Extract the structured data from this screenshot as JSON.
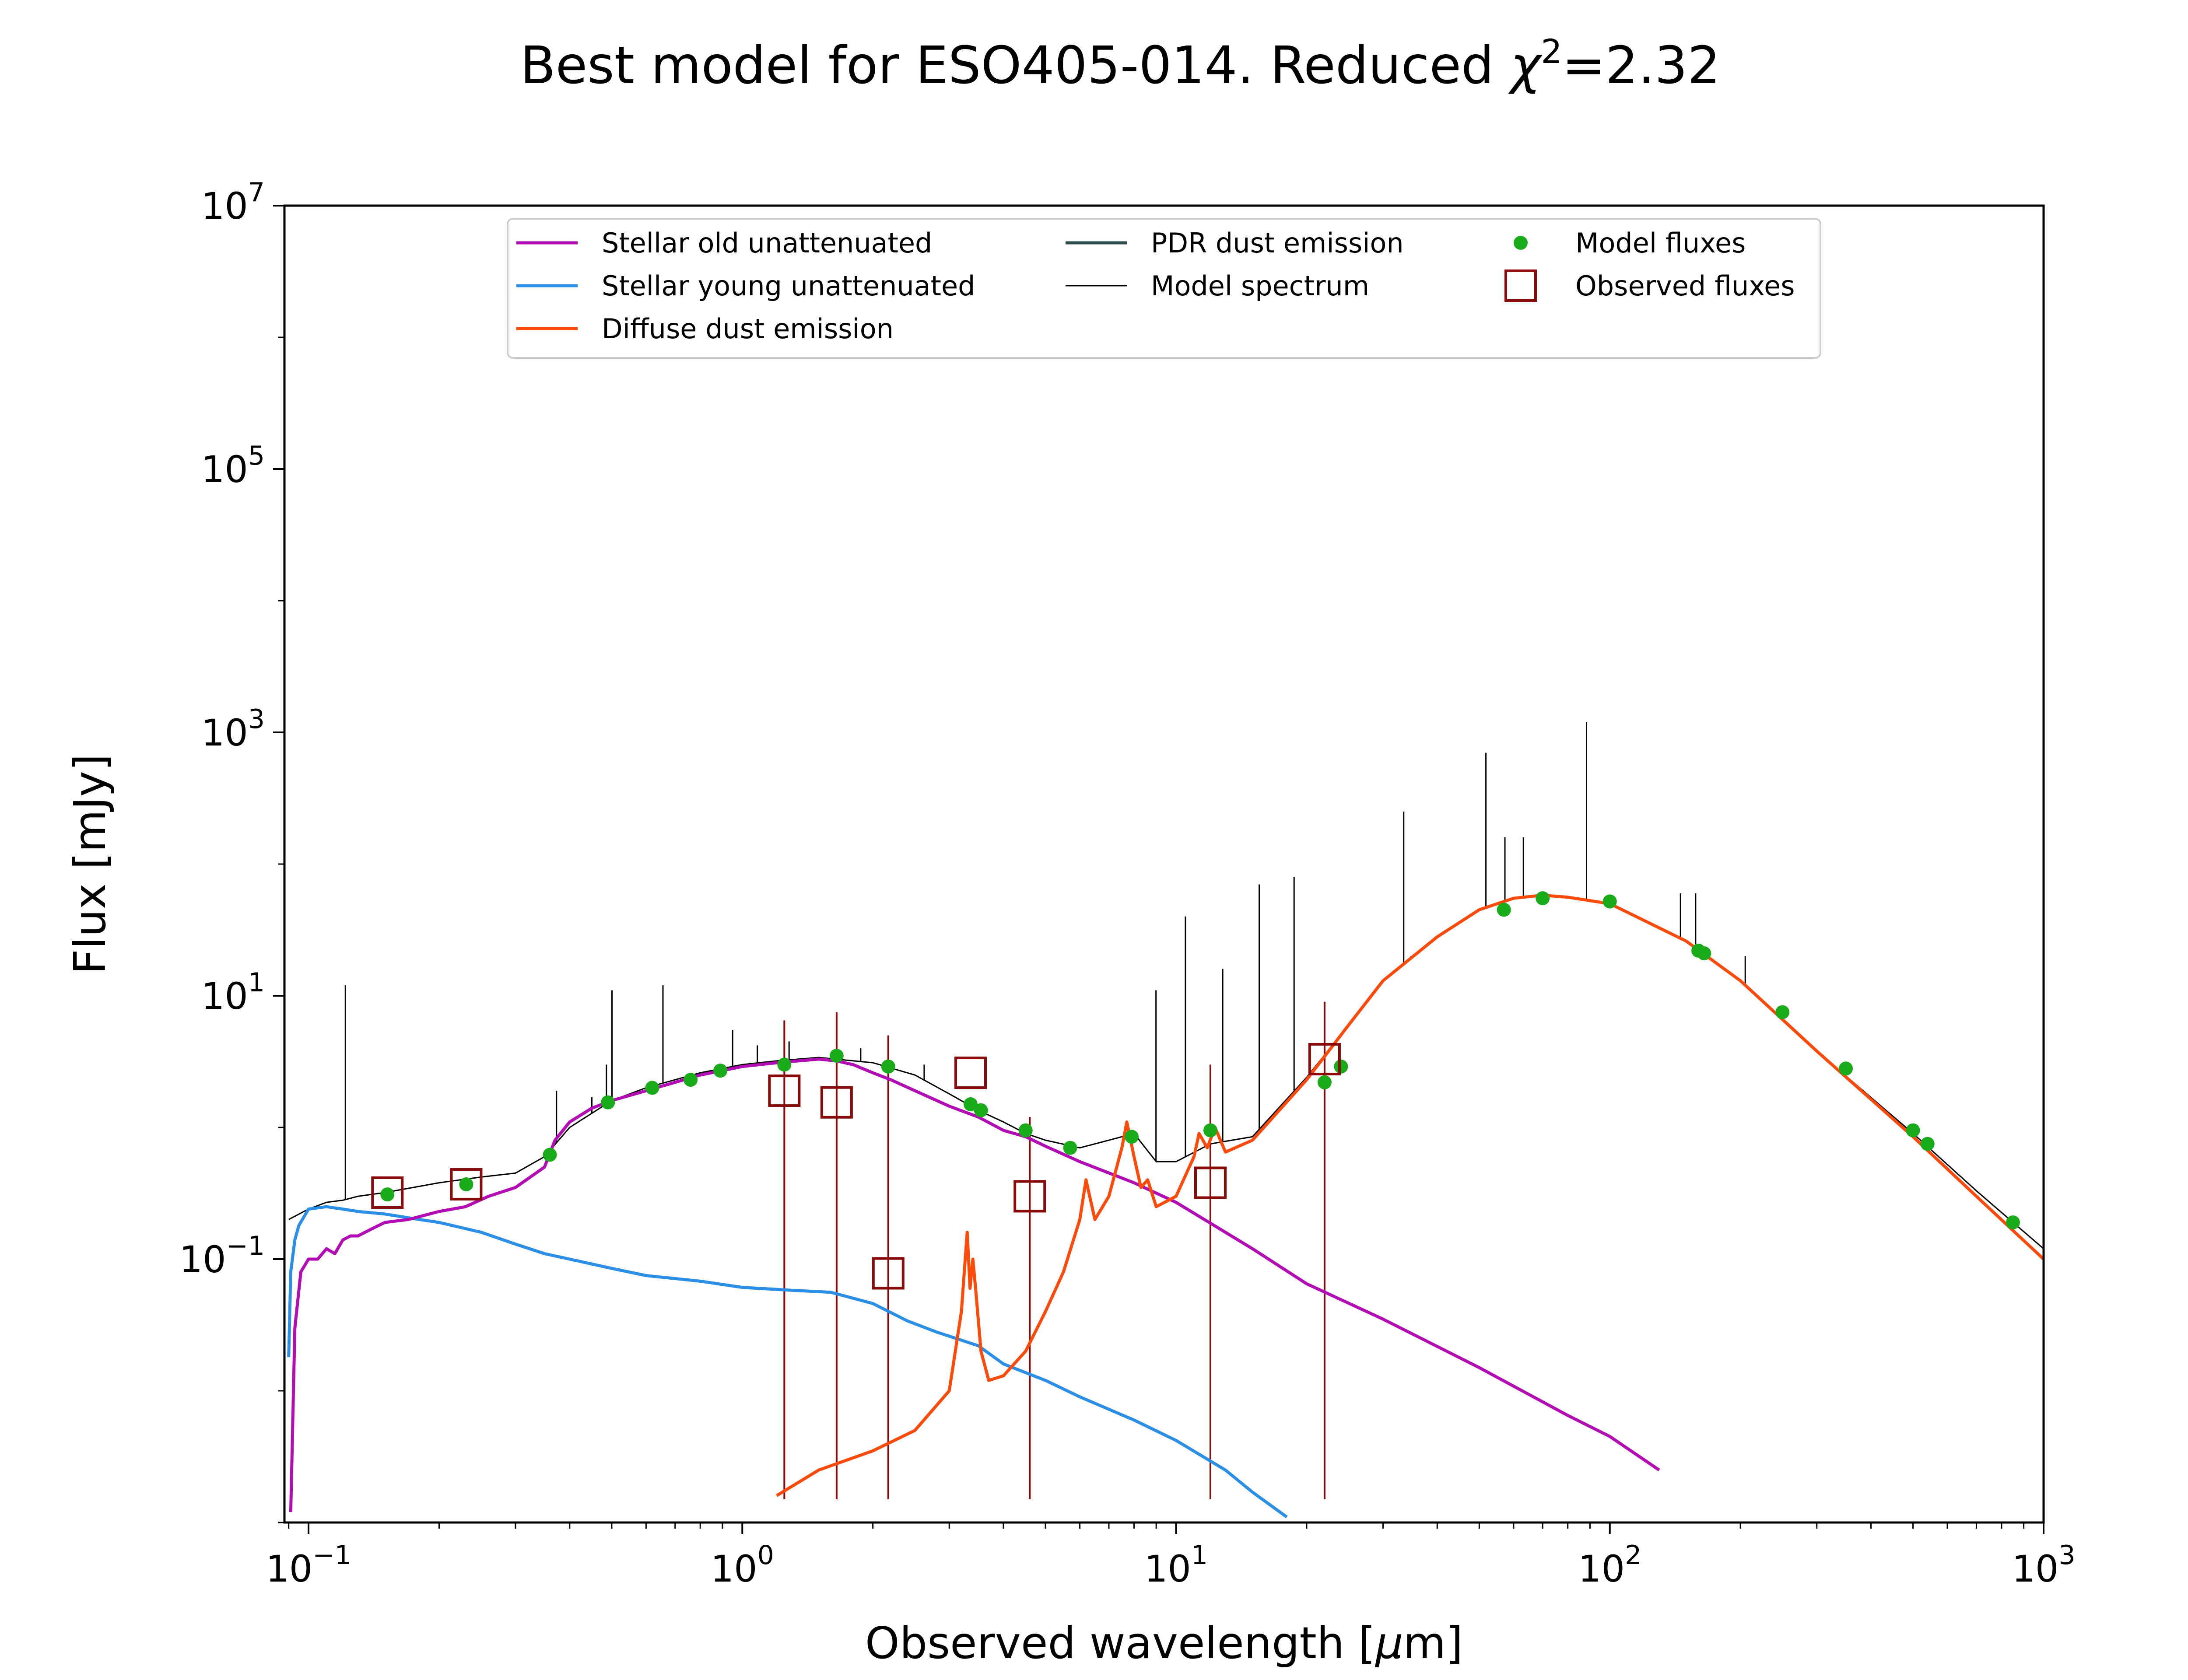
{
  "chart_data": {
    "type": "line",
    "title": "Best model for ESO405-014. Reduced χ²=2.32",
    "title_parts": {
      "main": "Best model for ESO405-014. Reduced ",
      "chi": "χ",
      "sup": "2",
      "value": "=2.32"
    },
    "xlabel": "Observed wavelength [μm]",
    "xlabel_parts": {
      "prefix": "Observed wavelength [",
      "mu": "μ",
      "suffix": "m]"
    },
    "ylabel": "Flux [mJy]",
    "xscale": "log",
    "yscale": "log",
    "xlim": [
      0.088,
      1000
    ],
    "ylim": [
      0.001,
      10000000
    ],
    "x_ticks": [
      {
        "value": 0.1,
        "base": "10",
        "exp": "−1"
      },
      {
        "value": 1,
        "base": "10",
        "exp": "0"
      },
      {
        "value": 10,
        "base": "10",
        "exp": "1"
      },
      {
        "value": 100,
        "base": "10",
        "exp": "2"
      },
      {
        "value": 1000,
        "base": "10",
        "exp": "3"
      }
    ],
    "y_ticks": [
      {
        "value": 0.1,
        "base": "10",
        "exp": "−1"
      },
      {
        "value": 10,
        "base": "10",
        "exp": "1"
      },
      {
        "value": 1000,
        "base": "10",
        "exp": "3"
      },
      {
        "value": 100000,
        "base": "10",
        "exp": "5"
      },
      {
        "value": 10000000,
        "base": "10",
        "exp": "7"
      }
    ],
    "grid": false,
    "legend_position": "top-center",
    "legend": [
      {
        "label": "Stellar old unattenuated",
        "kind": "line",
        "color": "#b40cb4"
      },
      {
        "label": "Stellar young unattenuated",
        "kind": "line",
        "color": "#2b8fe8"
      },
      {
        "label": "Diffuse dust emission",
        "kind": "line",
        "color": "#ff4a0a"
      },
      {
        "label": "PDR dust emission",
        "kind": "line",
        "color": "#2f4f4f"
      },
      {
        "label": "Model spectrum",
        "kind": "thinline",
        "color": "#000000"
      },
      {
        "label": "Model fluxes",
        "kind": "dot",
        "color": "#1aab1a"
      },
      {
        "label": "Observed fluxes",
        "kind": "square",
        "color": "#8b0a0a"
      }
    ],
    "series": [
      {
        "name": "Stellar old unattenuated",
        "color": "#b40cb4",
        "x": [
          0.091,
          0.093,
          0.096,
          0.1,
          0.105,
          0.11,
          0.115,
          0.12,
          0.125,
          0.13,
          0.14,
          0.15,
          0.17,
          0.2,
          0.23,
          0.26,
          0.3,
          0.35,
          0.37,
          0.4,
          0.45,
          0.5,
          0.6,
          0.7,
          0.8,
          1.0,
          1.2,
          1.5,
          1.65,
          1.8,
          2.0,
          2.2,
          2.5,
          3.0,
          3.5,
          4.0,
          4.5,
          5.0,
          6.0,
          8.0,
          10,
          15,
          20,
          30,
          50,
          80,
          100,
          130
        ],
        "y": [
          0.0012,
          0.03,
          0.08,
          0.1,
          0.1,
          0.12,
          0.11,
          0.14,
          0.15,
          0.15,
          0.17,
          0.19,
          0.2,
          0.23,
          0.25,
          0.3,
          0.35,
          0.5,
          0.8,
          1.1,
          1.4,
          1.6,
          1.9,
          2.2,
          2.5,
          2.9,
          3.1,
          3.3,
          3.2,
          3.0,
          2.6,
          2.3,
          1.9,
          1.45,
          1.2,
          0.95,
          0.85,
          0.72,
          0.55,
          0.38,
          0.27,
          0.12,
          0.065,
          0.035,
          0.015,
          0.0065,
          0.0045,
          0.0025
        ]
      },
      {
        "name": "Stellar young unattenuated",
        "color": "#2b8fe8",
        "x": [
          0.09,
          0.091,
          0.093,
          0.095,
          0.1,
          0.11,
          0.12,
          0.13,
          0.15,
          0.18,
          0.2,
          0.25,
          0.3,
          0.35,
          0.4,
          0.5,
          0.6,
          0.8,
          1.0,
          1.3,
          1.6,
          2.0,
          2.4,
          2.8,
          3.5,
          4.0,
          5.0,
          6.0,
          8.0,
          10,
          13,
          15,
          18
        ],
        "y": [
          0.018,
          0.08,
          0.14,
          0.18,
          0.24,
          0.25,
          0.24,
          0.23,
          0.22,
          0.2,
          0.19,
          0.16,
          0.13,
          0.11,
          0.1,
          0.085,
          0.075,
          0.068,
          0.061,
          0.058,
          0.056,
          0.046,
          0.034,
          0.028,
          0.022,
          0.016,
          0.012,
          0.009,
          0.006,
          0.0042,
          0.0025,
          0.0017,
          0.0011
        ]
      },
      {
        "name": "Diffuse dust emission",
        "color": "#ff4a0a",
        "x": [
          1.2,
          1.5,
          2.0,
          2.5,
          3.0,
          3.2,
          3.3,
          3.35,
          3.4,
          3.45,
          3.55,
          3.7,
          4.0,
          4.5,
          5.0,
          5.5,
          6.0,
          6.2,
          6.5,
          7.0,
          7.5,
          7.7,
          8.0,
          8.3,
          8.6,
          9.0,
          10,
          11,
          11.3,
          11.8,
          12.3,
          13,
          15,
          20,
          25,
          30,
          40,
          50,
          60,
          70,
          80,
          100,
          150,
          200,
          300,
          500,
          700,
          1000
        ],
        "y": [
          0.0016,
          0.0025,
          0.0035,
          0.005,
          0.01,
          0.04,
          0.16,
          0.06,
          0.1,
          0.06,
          0.02,
          0.012,
          0.013,
          0.02,
          0.04,
          0.08,
          0.2,
          0.4,
          0.2,
          0.3,
          0.7,
          1.1,
          0.6,
          0.35,
          0.4,
          0.25,
          0.3,
          0.6,
          0.9,
          0.7,
          1.0,
          0.65,
          0.8,
          2.3,
          6,
          13,
          28,
          45,
          55,
          58,
          56,
          50,
          26,
          13,
          3.8,
          0.85,
          0.3,
          0.1
        ]
      },
      {
        "name": "Model spectrum",
        "color": "#000000",
        "x": [
          0.09,
          0.1,
          0.11,
          0.12,
          0.13,
          0.15,
          0.2,
          0.25,
          0.3,
          0.35,
          0.4,
          0.5,
          0.6,
          0.8,
          1.0,
          1.2,
          1.5,
          2.0,
          2.5,
          3.0,
          3.5,
          4.0,
          4.5,
          5.0,
          6.0,
          7.0,
          8.0,
          9.0,
          10,
          12,
          15,
          20,
          25,
          30,
          40,
          50,
          60,
          70,
          80,
          100,
          150,
          200,
          300,
          500,
          700,
          1000
        ],
        "y": [
          0.2,
          0.24,
          0.27,
          0.28,
          0.3,
          0.32,
          0.38,
          0.42,
          0.45,
          0.6,
          1.0,
          1.6,
          2.0,
          2.6,
          3.0,
          3.2,
          3.4,
          3.1,
          2.5,
          1.8,
          1.35,
          1.1,
          0.9,
          0.8,
          0.7,
          0.8,
          0.9,
          0.55,
          0.55,
          0.75,
          0.85,
          2.4,
          6,
          13,
          28,
          45,
          55,
          58,
          56,
          50,
          26,
          13,
          3.8,
          0.9,
          0.33,
          0.12
        ],
        "emission_lines": [
          {
            "x": 0.1216,
            "peak": 12
          },
          {
            "x": 0.373,
            "peak": 1.9
          },
          {
            "x": 0.45,
            "peak": 1.7
          },
          {
            "x": 0.4861,
            "peak": 3.0
          },
          {
            "x": 0.5007,
            "peak": 11
          },
          {
            "x": 0.6563,
            "peak": 12
          },
          {
            "x": 0.95,
            "peak": 5.5
          },
          {
            "x": 1.083,
            "peak": 4.2
          },
          {
            "x": 1.282,
            "peak": 4.5
          },
          {
            "x": 1.875,
            "peak": 4.0
          },
          {
            "x": 2.626,
            "peak": 3.0
          },
          {
            "x": 8.99,
            "peak": 11
          },
          {
            "x": 10.51,
            "peak": 40
          },
          {
            "x": 12.81,
            "peak": 16
          },
          {
            "x": 15.55,
            "peak": 70
          },
          {
            "x": 18.71,
            "peak": 80
          },
          {
            "x": 33.48,
            "peak": 250
          },
          {
            "x": 34.8,
            "peak": 20
          },
          {
            "x": 51.8,
            "peak": 700
          },
          {
            "x": 57.3,
            "peak": 160
          },
          {
            "x": 63.2,
            "peak": 160
          },
          {
            "x": 88.36,
            "peak": 1200
          },
          {
            "x": 145.5,
            "peak": 60
          },
          {
            "x": 157.7,
            "peak": 60
          },
          {
            "x": 205.2,
            "peak": 20
          }
        ]
      }
    ],
    "model_fluxes": {
      "name": "Model fluxes",
      "color": "#1aab1a",
      "x": [
        0.152,
        0.231,
        0.36,
        0.49,
        0.62,
        0.76,
        0.89,
        1.25,
        1.65,
        2.17,
        3.36,
        3.55,
        4.5,
        5.7,
        7.9,
        12,
        22,
        24,
        57,
        70,
        100,
        160,
        165,
        250,
        350,
        500,
        540,
        850
      ],
      "y": [
        0.31,
        0.37,
        0.62,
        1.55,
        2.0,
        2.3,
        2.7,
        3.0,
        3.5,
        2.9,
        1.5,
        1.35,
        0.95,
        0.7,
        0.85,
        0.95,
        2.2,
        2.9,
        45,
        55,
        52,
        22,
        21,
        7.5,
        2.8,
        0.95,
        0.75,
        0.19
      ]
    },
    "observed_fluxes": {
      "name": "Observed fluxes",
      "color": "#8b0a0a",
      "x": [
        0.152,
        0.231,
        1.25,
        1.65,
        2.17,
        3.36,
        4.6,
        12,
        22
      ],
      "y": [
        0.32,
        0.37,
        1.9,
        1.55,
        0.078,
        2.6,
        0.3,
        0.38,
        3.3
      ],
      "error_low": [
        null,
        null,
        0.0015,
        0.0015,
        0.0015,
        null,
        0.0015,
        0.0015,
        0.0015
      ],
      "error_high": [
        null,
        null,
        6.5,
        7.5,
        5.0,
        null,
        1.2,
        3.0,
        9.0
      ]
    }
  }
}
